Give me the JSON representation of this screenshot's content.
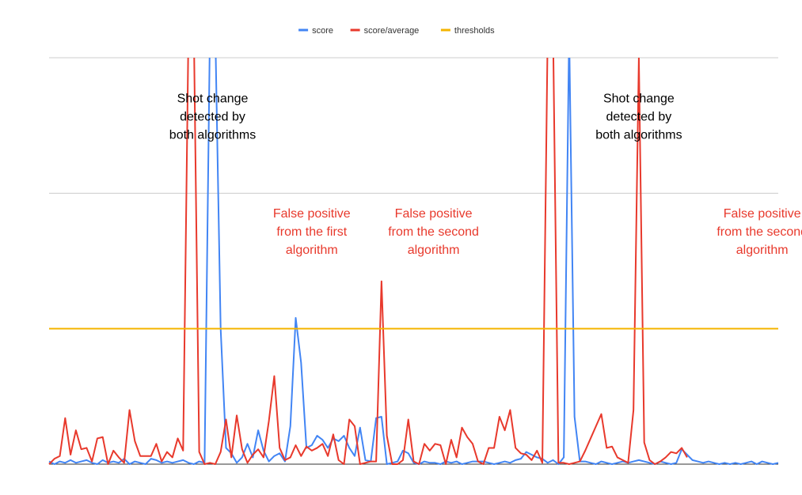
{
  "chart_data": {
    "type": "line",
    "title": "",
    "xlabel": "",
    "ylabel": "",
    "x_count": 137,
    "ylim": [
      0,
      3
    ],
    "grid": "horizontal",
    "legend_position": "top-center",
    "series": [
      {
        "name": "score",
        "color": "#4285f4",
        "values": [
          0.02,
          0.0,
          0.02,
          0.01,
          0.03,
          0.01,
          0.02,
          0.03,
          0.01,
          0.0,
          0.03,
          0.01,
          0.02,
          0.01,
          0.04,
          0.0,
          0.02,
          0.01,
          0.0,
          0.04,
          0.03,
          0.01,
          0.02,
          0.01,
          0.02,
          0.03,
          0.01,
          0.0,
          0.02,
          0.01,
          3.2,
          3.2,
          1.0,
          0.12,
          0.08,
          0.01,
          0.05,
          0.15,
          0.05,
          0.25,
          0.1,
          0.02,
          0.06,
          0.08,
          0.02,
          0.28,
          1.08,
          0.75,
          0.12,
          0.14,
          0.21,
          0.18,
          0.12,
          0.19,
          0.17,
          0.21,
          0.12,
          0.06,
          0.27,
          0.03,
          0.02,
          0.34,
          0.35,
          0.0,
          0.01,
          0.02,
          0.1,
          0.08,
          0.01,
          0.0,
          0.02,
          0.01,
          0.01,
          0.0,
          0.02,
          0.01,
          0.02,
          0.0,
          0.01,
          0.02,
          0.02,
          0.02,
          0.01,
          0.0,
          0.01,
          0.02,
          0.01,
          0.03,
          0.04,
          0.09,
          0.07,
          0.05,
          0.04,
          0.01,
          0.03,
          0.0,
          0.05,
          3.2,
          0.35,
          0.02,
          0.02,
          0.01,
          0.0,
          0.02,
          0.01,
          0.0,
          0.01,
          0.02,
          0.01,
          0.02,
          0.03,
          0.02,
          0.01,
          0.0,
          0.02,
          0.01,
          0.0,
          0.01,
          0.11,
          0.07,
          0.03,
          0.02,
          0.01,
          0.02,
          0.01,
          0.0,
          0.01,
          0.0,
          0.01,
          0.0,
          0.01,
          0.02,
          0.0,
          0.02,
          0.01,
          0.0,
          0.01
        ]
      },
      {
        "name": "score/average",
        "color": "#e8392c",
        "values": [
          0.0,
          0.04,
          0.06,
          0.34,
          0.07,
          0.25,
          0.11,
          0.12,
          0.02,
          0.19,
          0.2,
          0.0,
          0.1,
          0.05,
          0.01,
          0.4,
          0.17,
          0.06,
          0.06,
          0.06,
          0.15,
          0.02,
          0.09,
          0.05,
          0.19,
          0.1,
          3.2,
          3.2,
          0.09,
          0.0,
          0.01,
          0.0,
          0.09,
          0.33,
          0.05,
          0.36,
          0.11,
          0.01,
          0.07,
          0.11,
          0.05,
          0.32,
          0.65,
          0.12,
          0.03,
          0.05,
          0.14,
          0.06,
          0.13,
          0.1,
          0.12,
          0.15,
          0.06,
          0.22,
          0.03,
          0.0,
          0.33,
          0.28,
          0.0,
          0.01,
          0.02,
          0.02,
          1.35,
          0.21,
          0.0,
          0.0,
          0.03,
          0.33,
          0.02,
          0.0,
          0.15,
          0.1,
          0.15,
          0.14,
          0.0,
          0.18,
          0.05,
          0.27,
          0.2,
          0.15,
          0.02,
          0.0,
          0.12,
          0.12,
          0.35,
          0.25,
          0.4,
          0.12,
          0.08,
          0.07,
          0.03,
          0.1,
          0.01,
          3.2,
          3.2,
          0.01,
          0.01,
          0.0,
          0.01,
          0.02,
          0.1,
          0.19,
          0.28,
          0.37,
          0.12,
          0.13,
          0.05,
          0.03,
          0.01,
          0.4,
          3.0,
          0.16,
          0.03,
          0.0,
          0.02,
          0.05,
          0.09,
          0.08,
          0.12,
          0.05
        ]
      },
      {
        "name": "thresholds",
        "color": "#f4b400",
        "values": [
          1.0,
          1.0
        ]
      }
    ],
    "annotations": [
      {
        "lines": [
          "Shot change",
          "detected by",
          "both algorithms"
        ],
        "color": "#000000",
        "x_index": 30.5,
        "y": 2.67
      },
      {
        "lines": [
          "False positive",
          "from the first",
          "algorithm"
        ],
        "color": "#e8392c",
        "x_index": 49.0,
        "y": 1.82
      },
      {
        "lines": [
          "False positive",
          "from the second",
          "algorithm"
        ],
        "color": "#e8392c",
        "x_index": 71.7,
        "y": 1.82
      },
      {
        "lines": [
          "Shot change",
          "detected by",
          "both algorithms"
        ],
        "color": "#000000",
        "x_index": 110.0,
        "y": 2.67
      },
      {
        "lines": [
          "False positive",
          "from the second",
          "algorithm"
        ],
        "color": "#e8392c",
        "x_index": 133.0,
        "y": 1.82
      }
    ]
  }
}
